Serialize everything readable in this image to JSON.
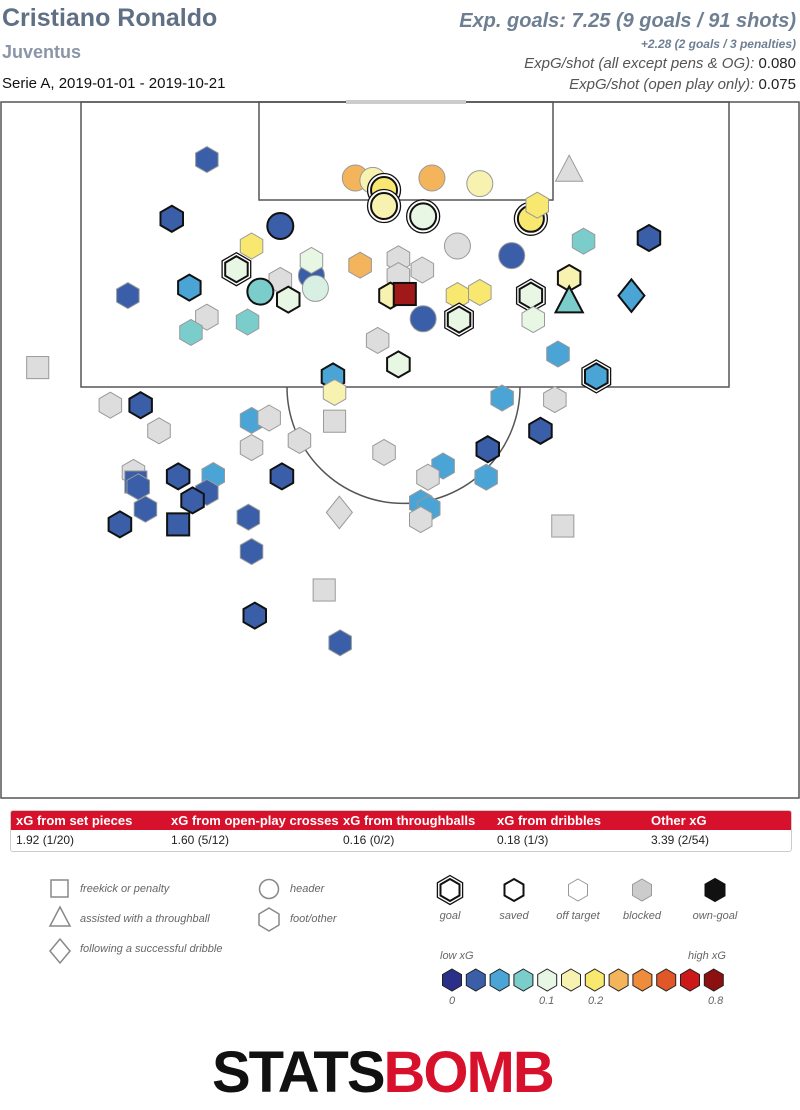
{
  "header": {
    "player": "Cristiano Ronaldo",
    "team": "Juventus",
    "competition": "Serie A, 2019-01-01 - 2019-10-21",
    "xg_total": "Exp. goals: 7.25 (9 goals / 91 shots)",
    "xg_pens": "+2.28 (2 goals / 3 penalties)",
    "xg_per_shot_label": "ExpG/shot (all except pens & OG):",
    "xg_per_shot_value": "0.080",
    "xg_per_shot_open_label": "ExpG/shot (open play only):",
    "xg_per_shot_open_value": "0.075"
  },
  "categories": [
    {
      "label": "xG from set pieces",
      "value": "1.92 (1/20)"
    },
    {
      "label": "xG from open-play crosses",
      "value": "1.60 (5/12)"
    },
    {
      "label": "xG from throughballs",
      "value": "0.16 (0/2)"
    },
    {
      "label": "xG from dribbles",
      "value": "0.18 (1/3)"
    },
    {
      "label": "Other xG",
      "value": "3.39 (2/54)"
    }
  ],
  "legend": {
    "shapes": [
      {
        "shape": "square",
        "label": "freekick or penalty"
      },
      {
        "shape": "triangle",
        "label": "assisted with a throughball"
      },
      {
        "shape": "diamond",
        "label": "following a successful dribble"
      },
      {
        "shape": "circle",
        "label": "header"
      },
      {
        "shape": "hexagon",
        "label": "foot/other"
      }
    ],
    "outcomes": [
      {
        "outcome": "goal",
        "label": "goal"
      },
      {
        "outcome": "saved",
        "label": "saved"
      },
      {
        "outcome": "off",
        "label": "off target"
      },
      {
        "outcome": "blocked",
        "label": "blocked"
      },
      {
        "outcome": "own",
        "label": "own-goal"
      }
    ],
    "scale_low": "low xG",
    "scale_high": "high xG",
    "scale_ticks": [
      "0",
      "0.1",
      "0.2",
      "0.8"
    ],
    "scale_colors": [
      "#2a2f8a",
      "#3a5fa8",
      "#4aa5d6",
      "#7bcdcc",
      "#e8f6e4",
      "#f8f2b0",
      "#f8e870",
      "#f4b45c",
      "#ee8c3c",
      "#e05828",
      "#cc1818",
      "#8c1010"
    ]
  },
  "logo": {
    "part1": "STATS",
    "part2": "BOMB"
  },
  "chart_data": {
    "type": "scatter",
    "title": "Cristiano Ronaldo",
    "x_field": "pitch width (0 = left sideline, 100 = right sideline)",
    "y_field": "distance from goal line (pitch units)",
    "xlim": [
      0,
      100
    ],
    "ylim": [
      0,
      87
    ],
    "shots": [
      {
        "x": 25.8,
        "y": 7.2,
        "shape": "hexagon",
        "outcome": "off",
        "color": "#3a5fa8"
      },
      {
        "x": 21.4,
        "y": 14.6,
        "shape": "hexagon",
        "outcome": "saved",
        "color": "#3a5fa8"
      },
      {
        "x": 35.0,
        "y": 15.5,
        "shape": "circle",
        "outcome": "saved",
        "color": "#3a5fa8"
      },
      {
        "x": 44.4,
        "y": 9.5,
        "shape": "circle",
        "outcome": "off",
        "color": "#f4b45c"
      },
      {
        "x": 46.6,
        "y": 9.8,
        "shape": "circle",
        "outcome": "blocked",
        "color": "#f8f2b0"
      },
      {
        "x": 48.0,
        "y": 11.0,
        "shape": "circle",
        "outcome": "goal",
        "color": "#f8e870"
      },
      {
        "x": 48.0,
        "y": 13.0,
        "shape": "circle",
        "outcome": "goal",
        "color": "#f8f2b0"
      },
      {
        "x": 54.0,
        "y": 9.5,
        "shape": "circle",
        "outcome": "off",
        "color": "#f4b45c"
      },
      {
        "x": 60.0,
        "y": 10.2,
        "shape": "circle",
        "outcome": "off",
        "color": "#f8f2b0"
      },
      {
        "x": 52.9,
        "y": 14.3,
        "shape": "circle",
        "outcome": "goal",
        "color": "#e8f6e4"
      },
      {
        "x": 66.4,
        "y": 14.6,
        "shape": "circle",
        "outcome": "goal",
        "color": "#f8e870"
      },
      {
        "x": 71.2,
        "y": 8.6,
        "shape": "triangle",
        "outcome": "blocked",
        "color": "#dddddd"
      },
      {
        "x": 67.2,
        "y": 12.9,
        "shape": "hexagon",
        "outcome": "off",
        "color": "#f8e870"
      },
      {
        "x": 31.4,
        "y": 18.0,
        "shape": "hexagon",
        "outcome": "off",
        "color": "#f8e870"
      },
      {
        "x": 57.2,
        "y": 18.0,
        "shape": "circle",
        "outcome": "blocked",
        "color": "#dddddd"
      },
      {
        "x": 64.0,
        "y": 19.2,
        "shape": "circle",
        "outcome": "off",
        "color": "#3a5fa8"
      },
      {
        "x": 73.0,
        "y": 17.4,
        "shape": "hexagon",
        "outcome": "off",
        "color": "#7bcdcc"
      },
      {
        "x": 81.2,
        "y": 17.0,
        "shape": "hexagon",
        "outcome": "saved",
        "color": "#3a5fa8"
      },
      {
        "x": 45.0,
        "y": 20.4,
        "shape": "hexagon",
        "outcome": "off",
        "color": "#f4b45c"
      },
      {
        "x": 49.8,
        "y": 19.6,
        "shape": "hexagon",
        "outcome": "blocked",
        "color": "#dddddd"
      },
      {
        "x": 29.5,
        "y": 20.9,
        "shape": "hexagon",
        "outcome": "goal",
        "color": "#e8f6e4"
      },
      {
        "x": 38.9,
        "y": 21.7,
        "shape": "circle",
        "outcome": "off",
        "color": "#3a5fa8"
      },
      {
        "x": 35.0,
        "y": 22.3,
        "shape": "hexagon",
        "outcome": "blocked",
        "color": "#dddddd"
      },
      {
        "x": 49.8,
        "y": 21.7,
        "shape": "hexagon",
        "outcome": "blocked",
        "color": "#dddddd"
      },
      {
        "x": 52.8,
        "y": 21.0,
        "shape": "hexagon",
        "outcome": "blocked",
        "color": "#dddddd"
      },
      {
        "x": 71.2,
        "y": 22.0,
        "shape": "hexagon",
        "outcome": "saved",
        "color": "#f8f2b0"
      },
      {
        "x": 15.9,
        "y": 24.2,
        "shape": "hexagon",
        "outcome": "off",
        "color": "#3a5fa8"
      },
      {
        "x": 23.6,
        "y": 23.2,
        "shape": "hexagon",
        "outcome": "saved",
        "color": "#4aa5d6"
      },
      {
        "x": 32.5,
        "y": 23.7,
        "shape": "circle",
        "outcome": "saved",
        "color": "#7bcdcc"
      },
      {
        "x": 39.4,
        "y": 23.3,
        "shape": "circle",
        "outcome": "off",
        "color": "#d8f0e4"
      },
      {
        "x": 36.0,
        "y": 24.7,
        "shape": "hexagon",
        "outcome": "saved",
        "color": "#e8f6e4"
      },
      {
        "x": 48.8,
        "y": 24.2,
        "shape": "hexagon",
        "outcome": "saved",
        "color": "#f8f2b0"
      },
      {
        "x": 50.6,
        "y": 24.0,
        "shape": "square",
        "outcome": "saved",
        "color": "#a01818"
      },
      {
        "x": 57.2,
        "y": 24.2,
        "shape": "hexagon",
        "outcome": "off",
        "color": "#f8e870"
      },
      {
        "x": 60.0,
        "y": 23.8,
        "shape": "hexagon",
        "outcome": "off",
        "color": "#f8e870"
      },
      {
        "x": 66.4,
        "y": 24.2,
        "shape": "hexagon",
        "outcome": "goal",
        "color": "#e8f6e4"
      },
      {
        "x": 71.2,
        "y": 25.0,
        "shape": "triangle",
        "outcome": "saved",
        "color": "#7bcdcc"
      },
      {
        "x": 79.0,
        "y": 24.2,
        "shape": "diamond",
        "outcome": "saved",
        "color": "#4aa5d6"
      },
      {
        "x": 25.8,
        "y": 26.9,
        "shape": "hexagon",
        "outcome": "blocked",
        "color": "#dddddd"
      },
      {
        "x": 23.8,
        "y": 28.8,
        "shape": "hexagon",
        "outcome": "off",
        "color": "#7bcdcc"
      },
      {
        "x": 30.9,
        "y": 27.5,
        "shape": "hexagon",
        "outcome": "off",
        "color": "#7bcdcc"
      },
      {
        "x": 52.9,
        "y": 27.1,
        "shape": "circle",
        "outcome": "off",
        "color": "#3a5fa8"
      },
      {
        "x": 57.4,
        "y": 27.2,
        "shape": "hexagon",
        "outcome": "goal",
        "color": "#e8f6e4"
      },
      {
        "x": 66.7,
        "y": 27.2,
        "shape": "hexagon",
        "outcome": "off",
        "color": "#e8f6e4"
      },
      {
        "x": 47.2,
        "y": 29.8,
        "shape": "hexagon",
        "outcome": "blocked",
        "color": "#dddddd"
      },
      {
        "x": 49.8,
        "y": 32.8,
        "shape": "hexagon",
        "outcome": "saved",
        "color": "#e8f6e4"
      },
      {
        "x": 69.8,
        "y": 31.5,
        "shape": "hexagon",
        "outcome": "off",
        "color": "#4aa5d6"
      },
      {
        "x": 4.6,
        "y": 33.2,
        "shape": "square",
        "outcome": "blocked",
        "color": "#dddddd"
      },
      {
        "x": 41.6,
        "y": 34.3,
        "shape": "hexagon",
        "outcome": "saved",
        "color": "#4aa5d6"
      },
      {
        "x": 41.8,
        "y": 36.3,
        "shape": "hexagon",
        "outcome": "off",
        "color": "#f8f2b0"
      },
      {
        "x": 74.6,
        "y": 34.3,
        "shape": "hexagon",
        "outcome": "goal",
        "color": "#4aa5d6"
      },
      {
        "x": 13.7,
        "y": 37.9,
        "shape": "hexagon",
        "outcome": "blocked",
        "color": "#dddddd"
      },
      {
        "x": 17.5,
        "y": 37.9,
        "shape": "hexagon",
        "outcome": "saved",
        "color": "#3a5fa8"
      },
      {
        "x": 62.8,
        "y": 37.0,
        "shape": "hexagon",
        "outcome": "off",
        "color": "#4aa5d6"
      },
      {
        "x": 69.4,
        "y": 37.2,
        "shape": "hexagon",
        "outcome": "blocked",
        "color": "#dddddd"
      },
      {
        "x": 31.4,
        "y": 39.8,
        "shape": "hexagon",
        "outcome": "off",
        "color": "#4aa5d6"
      },
      {
        "x": 33.6,
        "y": 39.5,
        "shape": "hexagon",
        "outcome": "blocked",
        "color": "#dddddd"
      },
      {
        "x": 41.8,
        "y": 39.9,
        "shape": "square",
        "outcome": "blocked",
        "color": "#dddddd"
      },
      {
        "x": 19.8,
        "y": 41.1,
        "shape": "hexagon",
        "outcome": "blocked",
        "color": "#dddddd"
      },
      {
        "x": 67.6,
        "y": 41.1,
        "shape": "hexagon",
        "outcome": "saved",
        "color": "#3a5fa8"
      },
      {
        "x": 37.4,
        "y": 42.3,
        "shape": "hexagon",
        "outcome": "blocked",
        "color": "#dddddd"
      },
      {
        "x": 31.4,
        "y": 43.2,
        "shape": "hexagon",
        "outcome": "blocked",
        "color": "#dddddd"
      },
      {
        "x": 48.0,
        "y": 43.8,
        "shape": "hexagon",
        "outcome": "blocked",
        "color": "#dddddd"
      },
      {
        "x": 61.0,
        "y": 43.4,
        "shape": "hexagon",
        "outcome": "saved",
        "color": "#3a5fa8"
      },
      {
        "x": 55.4,
        "y": 45.5,
        "shape": "hexagon",
        "outcome": "off",
        "color": "#4aa5d6"
      },
      {
        "x": 16.6,
        "y": 46.3,
        "shape": "hexagon",
        "outcome": "blocked",
        "color": "#dddddd"
      },
      {
        "x": 22.2,
        "y": 46.8,
        "shape": "hexagon",
        "outcome": "saved",
        "color": "#3a5fa8"
      },
      {
        "x": 26.6,
        "y": 46.7,
        "shape": "hexagon",
        "outcome": "off",
        "color": "#4aa5d6"
      },
      {
        "x": 35.2,
        "y": 46.8,
        "shape": "hexagon",
        "outcome": "saved",
        "color": "#3a5fa8"
      },
      {
        "x": 53.5,
        "y": 46.9,
        "shape": "hexagon",
        "outcome": "blocked",
        "color": "#dddddd"
      },
      {
        "x": 60.8,
        "y": 46.9,
        "shape": "hexagon",
        "outcome": "off",
        "color": "#4aa5d6"
      },
      {
        "x": 16.9,
        "y": 47.5,
        "shape": "square",
        "outcome": "off",
        "color": "#3a5fa8"
      },
      {
        "x": 17.2,
        "y": 48.1,
        "shape": "hexagon",
        "outcome": "off",
        "color": "#3a5fa8"
      },
      {
        "x": 25.8,
        "y": 48.8,
        "shape": "hexagon",
        "outcome": "off",
        "color": "#3a5fa8"
      },
      {
        "x": 24.0,
        "y": 49.8,
        "shape": "hexagon",
        "outcome": "saved",
        "color": "#3a5fa8"
      },
      {
        "x": 52.6,
        "y": 50.1,
        "shape": "hexagon",
        "outcome": "off",
        "color": "#4aa5d6"
      },
      {
        "x": 53.6,
        "y": 50.8,
        "shape": "hexagon",
        "outcome": "off",
        "color": "#4aa5d6"
      },
      {
        "x": 18.1,
        "y": 50.9,
        "shape": "hexagon",
        "outcome": "off",
        "color": "#3a5fa8"
      },
      {
        "x": 42.4,
        "y": 51.3,
        "shape": "diamond",
        "outcome": "blocked",
        "color": "#dddddd"
      },
      {
        "x": 31.0,
        "y": 51.9,
        "shape": "hexagon",
        "outcome": "off",
        "color": "#3a5fa8"
      },
      {
        "x": 52.6,
        "y": 52.2,
        "shape": "hexagon",
        "outcome": "blocked",
        "color": "#dddddd"
      },
      {
        "x": 14.9,
        "y": 52.8,
        "shape": "hexagon",
        "outcome": "saved",
        "color": "#3a5fa8"
      },
      {
        "x": 22.2,
        "y": 52.8,
        "shape": "square",
        "outcome": "saved",
        "color": "#3a5fa8"
      },
      {
        "x": 70.4,
        "y": 53.0,
        "shape": "square",
        "outcome": "blocked",
        "color": "#dddddd"
      },
      {
        "x": 31.4,
        "y": 56.2,
        "shape": "hexagon",
        "outcome": "off",
        "color": "#3a5fa8"
      },
      {
        "x": 40.5,
        "y": 61.0,
        "shape": "square",
        "outcome": "blocked",
        "color": "#dddddd"
      },
      {
        "x": 31.8,
        "y": 64.2,
        "shape": "hexagon",
        "outcome": "saved",
        "color": "#3a5fa8"
      },
      {
        "x": 42.5,
        "y": 67.6,
        "shape": "hexagon",
        "outcome": "off",
        "color": "#3a5fa8"
      },
      {
        "x": 38.9,
        "y": 19.8,
        "shape": "hexagon",
        "outcome": "off",
        "color": "#e8f6e4"
      }
    ]
  }
}
